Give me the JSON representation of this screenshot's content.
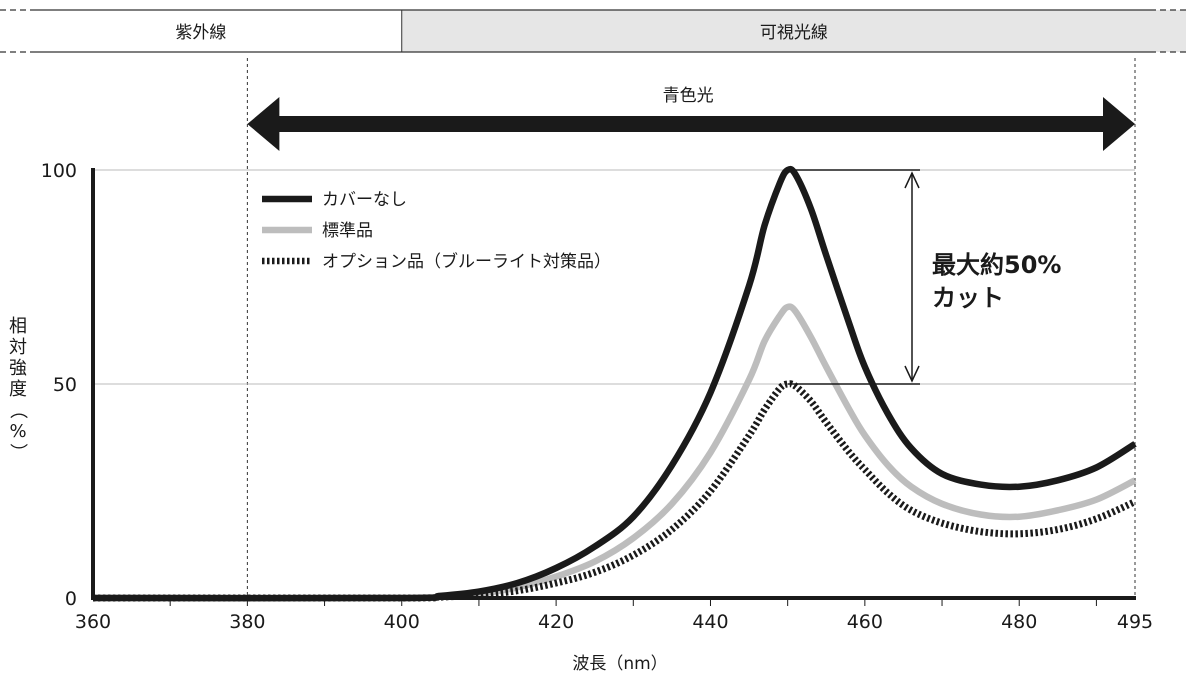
{
  "chart_data": {
    "type": "line",
    "bands": [
      {
        "label": "紫外線",
        "from": 360,
        "to": 400,
        "color": "#ffffff"
      },
      {
        "label": "可視光線",
        "from": 400,
        "to": 495,
        "color": "#e6e6e6"
      }
    ],
    "range_arrow": {
      "label": "青色光",
      "from": 380,
      "to": 495
    },
    "xlabel": "波長（nm）",
    "ylabel": "相対強度（%）",
    "xlim": [
      360,
      495
    ],
    "ylim": [
      0,
      100
    ],
    "x_ticks": [
      360,
      380,
      400,
      420,
      440,
      460,
      480,
      495
    ],
    "y_ticks": [
      0,
      50,
      100
    ],
    "grid": "horizontal at 50 and 100",
    "legend_position": "top-left",
    "series": [
      {
        "name": "カバーなし",
        "color": "#1a1a1a",
        "style": "solid",
        "x": [
          360,
          400,
          405,
          410,
          415,
          420,
          425,
          430,
          435,
          440,
          445,
          447,
          449,
          450,
          451,
          453,
          455,
          458,
          460,
          463,
          466,
          470,
          475,
          480,
          485,
          490,
          495
        ],
        "y": [
          0,
          0,
          0.5,
          1.5,
          3.5,
          7,
          12,
          19,
          31,
          48,
          73,
          87,
          97,
          100,
          99,
          91,
          80,
          64,
          54,
          43,
          35,
          29,
          26.5,
          26,
          27.5,
          30.5,
          36
        ]
      },
      {
        "name": "標準品",
        "color": "#bdbdbd",
        "style": "solid",
        "x": [
          360,
          400,
          405,
          410,
          415,
          420,
          425,
          430,
          435,
          440,
          445,
          447,
          449,
          450,
          451,
          453,
          455,
          458,
          460,
          463,
          466,
          470,
          475,
          480,
          485,
          490,
          495
        ],
        "y": [
          0,
          0,
          0.3,
          1,
          2.5,
          5,
          8.5,
          14,
          22,
          34,
          51,
          60,
          66,
          68,
          67,
          61,
          54,
          44,
          38,
          31,
          26,
          22,
          19.5,
          19,
          20.5,
          23,
          27.5
        ]
      },
      {
        "name": "オプション品（ブルーライト対策品）",
        "color": "#1a1a1a",
        "style": "dotted",
        "x": [
          360,
          400,
          405,
          410,
          415,
          420,
          425,
          430,
          435,
          440,
          445,
          447,
          449,
          450,
          451,
          453,
          455,
          458,
          460,
          463,
          466,
          470,
          475,
          480,
          485,
          490,
          495
        ],
        "y": [
          0,
          0,
          0.2,
          0.7,
          1.7,
          3.5,
          6,
          10,
          16,
          25,
          38,
          44,
          49,
          50,
          49.5,
          46,
          41,
          34,
          30,
          24.5,
          20.5,
          17.5,
          15.5,
          15,
          16,
          18.5,
          22.5
        ]
      }
    ],
    "annotation": {
      "text_line1": "最大約50%",
      "text_line2": "カット",
      "from": 50,
      "to": 100
    }
  }
}
